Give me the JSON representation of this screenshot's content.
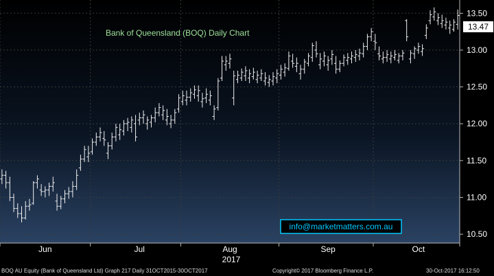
{
  "chart_data": {
    "type": "ohlc",
    "title": "Bank of Queensland (BOQ) Daily Chart",
    "last_price": "13.47",
    "y_ticks": [
      "13.50",
      "13.00",
      "12.50",
      "12.00",
      "11.50",
      "11.00",
      "10.50"
    ],
    "ylim": [
      10.38,
      13.68
    ],
    "x_ticks": [
      {
        "label": "Jun",
        "index": 11
      },
      {
        "label": "Jul",
        "index": 35
      },
      {
        "label": "Aug",
        "index": 58
      },
      {
        "label": "Sep",
        "index": 83
      },
      {
        "label": "Oct",
        "index": 106
      }
    ],
    "month_boundaries": [
      0,
      23,
      46,
      71,
      95,
      117
    ],
    "year_label": "2017",
    "watermark": "info@marketmatters.com.au",
    "colors": {
      "background": "#000000",
      "bars": "#f2f2f2",
      "title": "#9fe29a",
      "grid": "#3a3a3a",
      "watermark": "#00c8ff",
      "axis_bg": "#ffffff"
    },
    "bars": [
      [
        11.25,
        11.38,
        11.18,
        11.3
      ],
      [
        11.3,
        11.36,
        11.12,
        11.2
      ],
      [
        11.2,
        11.28,
        10.95,
        11.0
      ],
      [
        11.0,
        11.05,
        10.8,
        10.85
      ],
      [
        10.85,
        10.92,
        10.72,
        10.78
      ],
      [
        10.78,
        10.88,
        10.66,
        10.72
      ],
      [
        10.72,
        10.95,
        10.7,
        10.88
      ],
      [
        10.88,
        10.98,
        10.82,
        10.9
      ],
      [
        10.92,
        11.22,
        10.9,
        11.2
      ],
      [
        11.2,
        11.3,
        11.12,
        11.25
      ],
      [
        11.1,
        11.18,
        11.02,
        11.08
      ],
      [
        11.08,
        11.15,
        11.0,
        11.1
      ],
      [
        11.1,
        11.2,
        11.02,
        11.15
      ],
      [
        11.15,
        11.28,
        11.08,
        11.2
      ],
      [
        10.95,
        11.05,
        10.82,
        10.88
      ],
      [
        10.88,
        11.02,
        10.84,
        10.98
      ],
      [
        10.98,
        11.1,
        10.92,
        11.05
      ],
      [
        11.05,
        11.14,
        10.98,
        11.08
      ],
      [
        11.08,
        11.22,
        11.0,
        11.15
      ],
      [
        11.15,
        11.38,
        11.1,
        11.3
      ],
      [
        11.4,
        11.58,
        11.36,
        11.52
      ],
      [
        11.52,
        11.7,
        11.48,
        11.65
      ],
      [
        11.55,
        11.7,
        11.48,
        11.6
      ],
      [
        11.62,
        11.8,
        11.58,
        11.75
      ],
      [
        11.75,
        11.88,
        11.7,
        11.82
      ],
      [
        11.82,
        11.95,
        11.76,
        11.88
      ],
      [
        11.8,
        11.9,
        11.7,
        11.78
      ],
      [
        11.6,
        11.75,
        11.52,
        11.7
      ],
      [
        11.7,
        11.88,
        11.65,
        11.82
      ],
      [
        11.82,
        12.0,
        11.76,
        11.95
      ],
      [
        11.85,
        12.0,
        11.78,
        11.92
      ],
      [
        11.9,
        12.05,
        11.84,
        12.0
      ],
      [
        12.0,
        12.08,
        11.9,
        12.02
      ],
      [
        11.95,
        12.1,
        11.88,
        12.05
      ],
      [
        12.0,
        12.12,
        11.76,
        11.82
      ],
      [
        12.05,
        12.15,
        11.98,
        12.08
      ],
      [
        12.08,
        12.18,
        12.0,
        12.12
      ],
      [
        12.0,
        12.1,
        11.92,
        12.05
      ],
      [
        12.02,
        12.12,
        11.95,
        12.08
      ],
      [
        12.08,
        12.22,
        12.02,
        12.15
      ],
      [
        12.15,
        12.28,
        12.1,
        12.22
      ],
      [
        12.12,
        12.25,
        12.05,
        12.18
      ],
      [
        12.05,
        12.2,
        11.98,
        12.1
      ],
      [
        12.0,
        12.12,
        11.94,
        12.05
      ],
      [
        12.05,
        12.2,
        12.0,
        12.15
      ],
      [
        12.2,
        12.4,
        12.15,
        12.35
      ],
      [
        12.3,
        12.45,
        12.25,
        12.38
      ],
      [
        12.32,
        12.45,
        12.25,
        12.36
      ],
      [
        12.36,
        12.48,
        12.3,
        12.42
      ],
      [
        12.4,
        12.52,
        12.34,
        12.46
      ],
      [
        12.38,
        12.52,
        12.3,
        12.45
      ],
      [
        12.3,
        12.42,
        12.22,
        12.34
      ],
      [
        12.35,
        12.48,
        12.28,
        12.4
      ],
      [
        12.32,
        12.45,
        12.25,
        12.38
      ],
      [
        12.1,
        12.25,
        12.05,
        12.2
      ],
      [
        12.22,
        12.62,
        12.18,
        12.58
      ],
      [
        12.62,
        12.92,
        12.58,
        12.85
      ],
      [
        12.8,
        12.92,
        12.72,
        12.85
      ],
      [
        12.82,
        12.95,
        12.75,
        12.88
      ],
      [
        12.35,
        12.72,
        12.25,
        12.65
      ],
      [
        12.6,
        12.72,
        12.55,
        12.66
      ],
      [
        12.62,
        12.75,
        12.58,
        12.7
      ],
      [
        12.65,
        12.78,
        12.58,
        12.72
      ],
      [
        12.62,
        12.74,
        12.55,
        12.68
      ],
      [
        12.64,
        12.76,
        12.6,
        12.7
      ],
      [
        12.6,
        12.72,
        12.55,
        12.66
      ],
      [
        12.62,
        12.74,
        12.58,
        12.68
      ],
      [
        12.58,
        12.7,
        12.52,
        12.62
      ],
      [
        12.56,
        12.66,
        12.5,
        12.6
      ],
      [
        12.58,
        12.7,
        12.52,
        12.64
      ],
      [
        12.62,
        12.74,
        12.55,
        12.68
      ],
      [
        12.66,
        12.8,
        12.6,
        12.74
      ],
      [
        12.7,
        12.82,
        12.64,
        12.76
      ],
      [
        12.75,
        12.98,
        12.72,
        12.92
      ],
      [
        12.85,
        12.95,
        12.76,
        12.82
      ],
      [
        12.78,
        12.9,
        12.7,
        12.82
      ],
      [
        12.68,
        12.8,
        12.6,
        12.74
      ],
      [
        12.74,
        12.88,
        12.68,
        12.84
      ],
      [
        12.82,
        12.96,
        12.78,
        12.92
      ],
      [
        12.9,
        13.1,
        12.84,
        13.06
      ],
      [
        13.0,
        13.12,
        12.9,
        12.95
      ],
      [
        12.8,
        12.96,
        12.74,
        12.88
      ],
      [
        12.85,
        12.98,
        12.78,
        12.92
      ],
      [
        12.8,
        12.92,
        12.72,
        12.86
      ],
      [
        12.88,
        13.0,
        12.8,
        12.94
      ],
      [
        12.82,
        12.92,
        12.68,
        12.74
      ],
      [
        12.74,
        12.86,
        12.7,
        12.82
      ],
      [
        12.82,
        12.94,
        12.78,
        12.9
      ],
      [
        12.86,
        12.96,
        12.8,
        12.9
      ],
      [
        12.88,
        12.98,
        12.82,
        12.92
      ],
      [
        12.9,
        13.0,
        12.84,
        12.94
      ],
      [
        12.92,
        13.02,
        12.86,
        12.96
      ],
      [
        12.95,
        13.1,
        12.9,
        13.05
      ],
      [
        13.05,
        13.22,
        13.0,
        13.18
      ],
      [
        13.18,
        13.3,
        13.12,
        13.25
      ],
      [
        13.12,
        13.22,
        13.0,
        13.1
      ],
      [
        12.95,
        13.05,
        12.86,
        12.92
      ],
      [
        12.88,
        12.98,
        12.82,
        12.9
      ],
      [
        12.9,
        13.0,
        12.84,
        12.94
      ],
      [
        12.88,
        12.98,
        12.82,
        12.92
      ],
      [
        12.9,
        13.0,
        12.86,
        12.94
      ],
      [
        12.86,
        12.96,
        12.82,
        12.92
      ],
      [
        12.92,
        13.0,
        12.86,
        12.96
      ],
      [
        13.4,
        13.42,
        13.12,
        13.18
      ],
      [
        12.88,
        13.0,
        12.82,
        12.96
      ],
      [
        12.95,
        13.05,
        12.88,
        13.02
      ],
      [
        13.0,
        13.1,
        12.95,
        13.05
      ],
      [
        12.98,
        13.08,
        12.92,
        13.02
      ],
      [
        13.2,
        13.35,
        13.15,
        13.3
      ],
      [
        13.4,
        13.54,
        13.35,
        13.48
      ],
      [
        13.45,
        13.58,
        13.4,
        13.52
      ],
      [
        13.4,
        13.5,
        13.34,
        13.44
      ],
      [
        13.36,
        13.48,
        13.3,
        13.4
      ],
      [
        13.34,
        13.44,
        13.28,
        13.38
      ],
      [
        13.3,
        13.4,
        13.22,
        13.34
      ],
      [
        13.28,
        13.42,
        13.25,
        13.38
      ],
      [
        13.35,
        13.55,
        13.28,
        13.47
      ]
    ]
  },
  "footer": {
    "left": "BOQ AU Equity (Bank of Queensland Ltd) Graph 217  Daily 31OCT2015-30OCT2017",
    "middle": "Copyright© 2017 Bloomberg Finance L.P.",
    "right": "30-Oct-2017 16:12:50"
  }
}
